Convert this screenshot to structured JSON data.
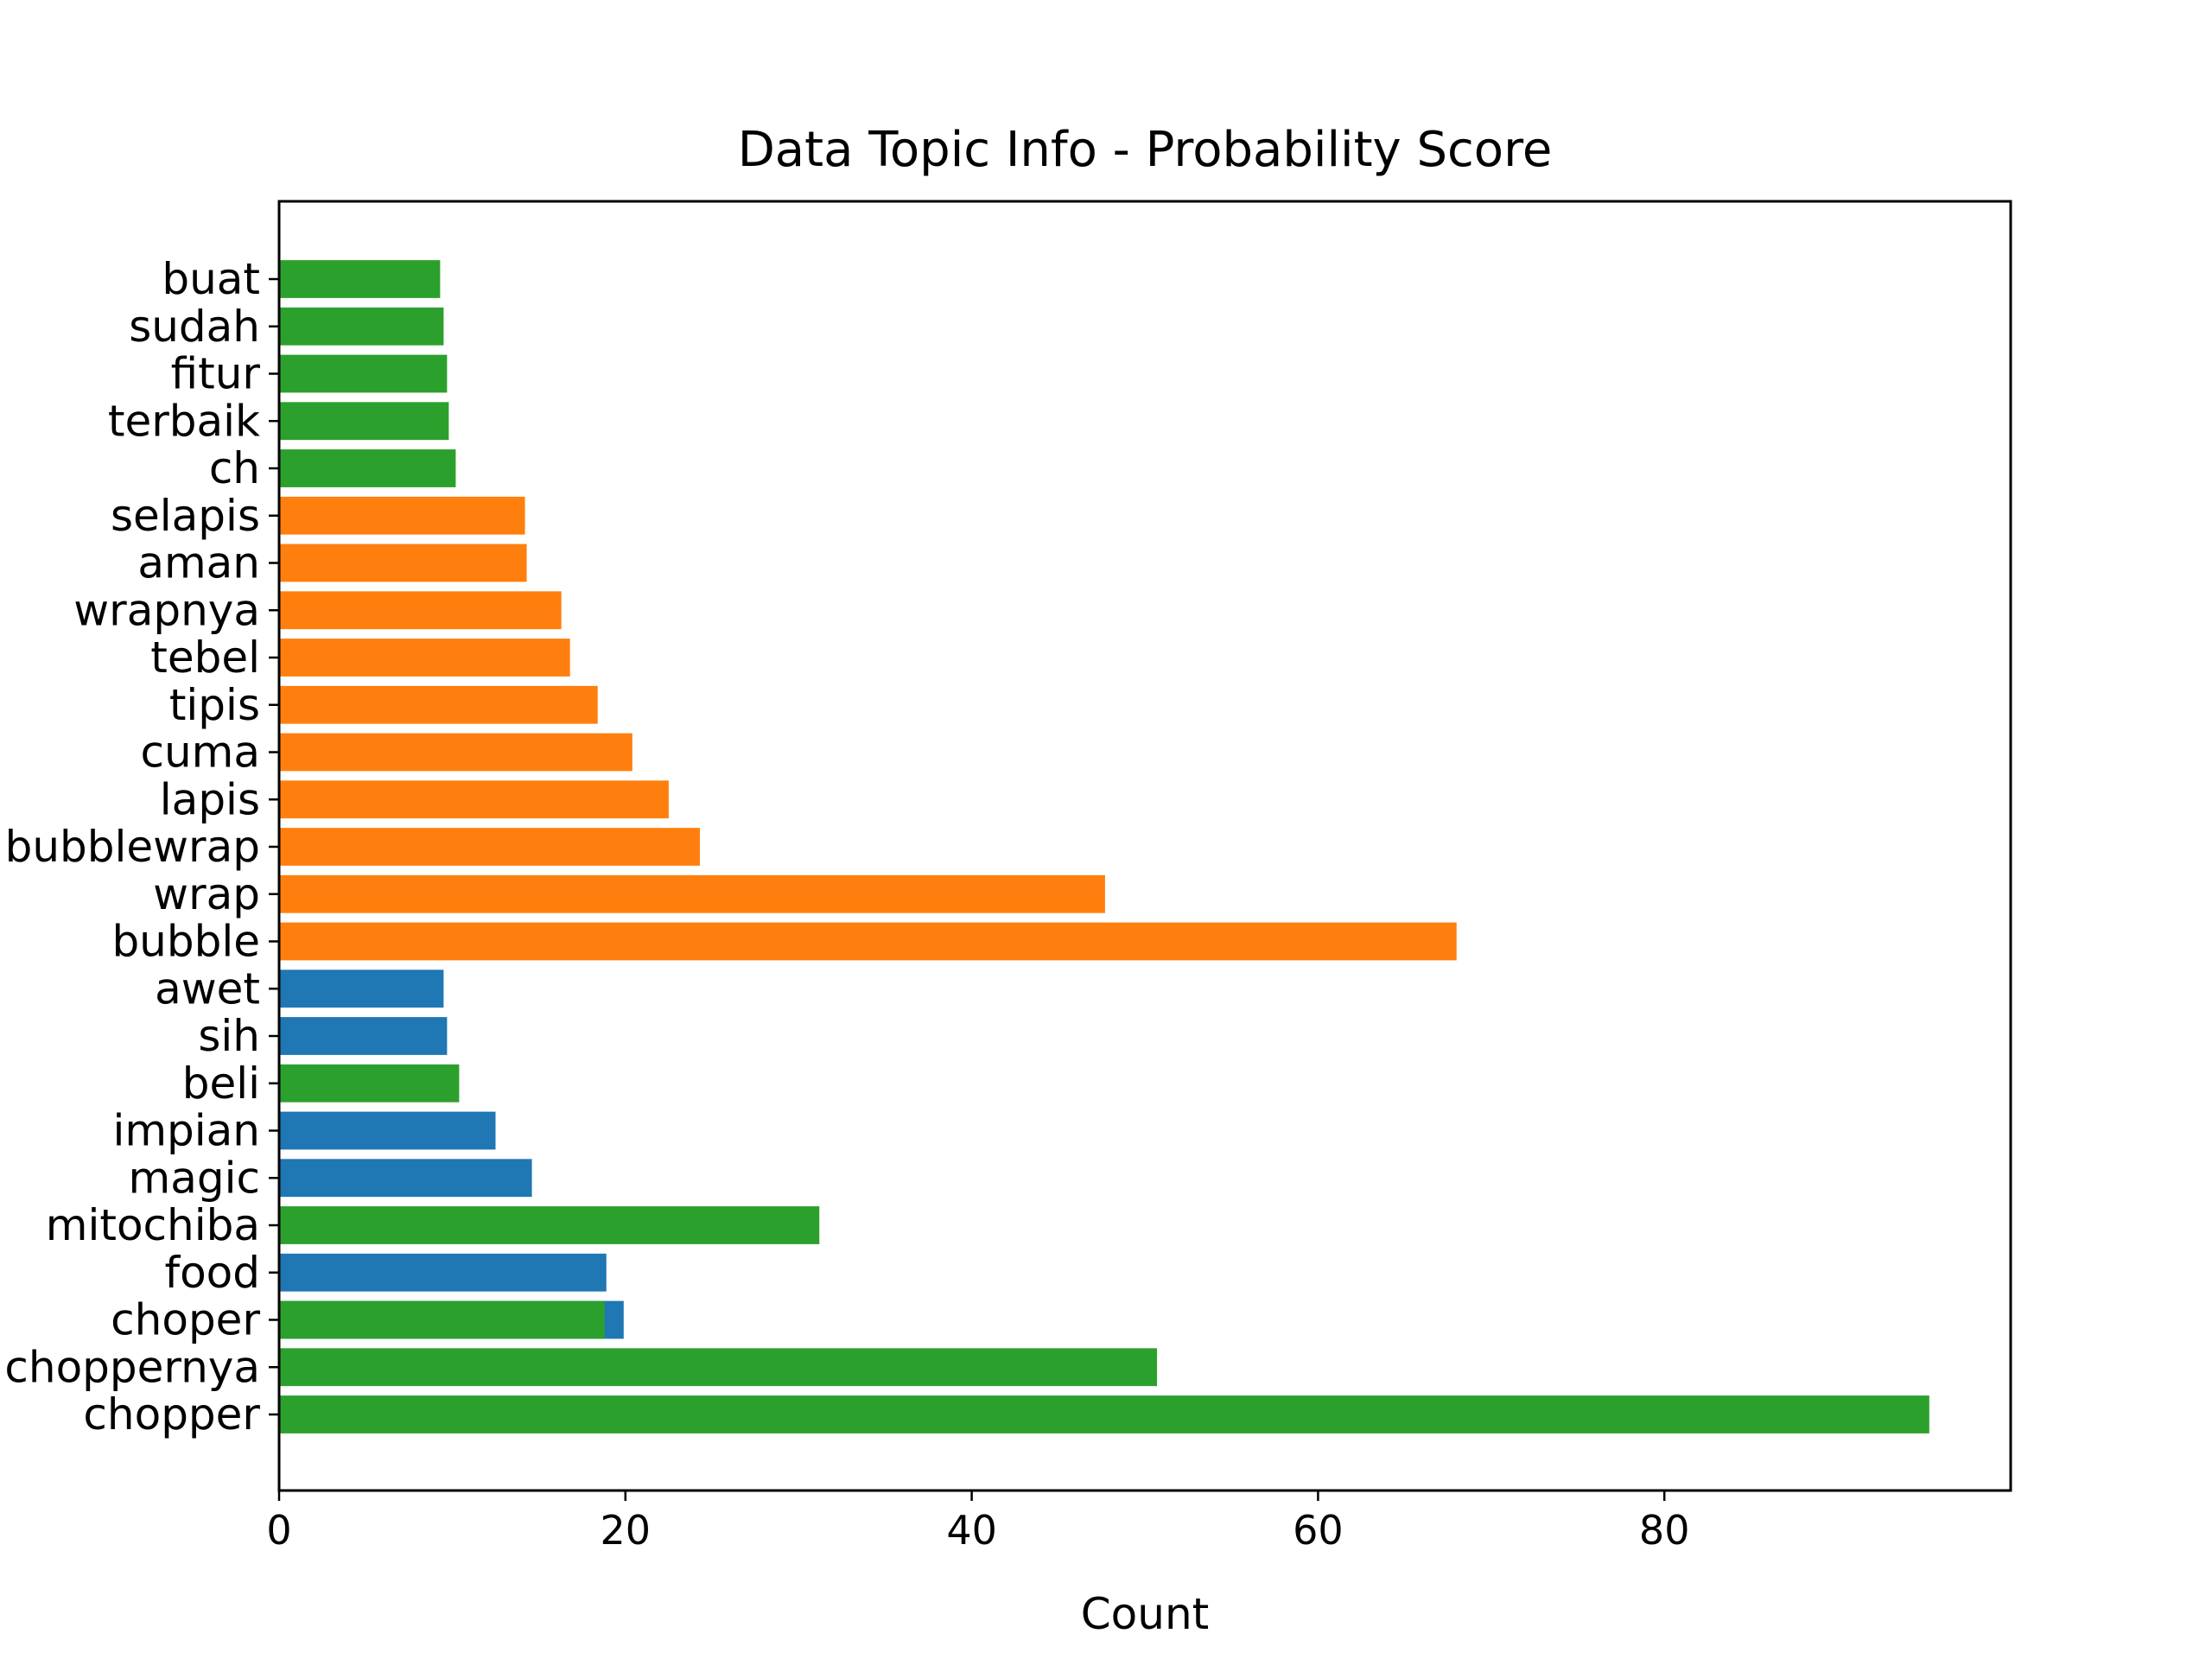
{
  "chart_data": {
    "type": "bar",
    "orientation": "horizontal",
    "title": "Data Topic Info - Probability Score",
    "xlabel": "Count",
    "ylabel": "",
    "xlim": [
      0,
      100
    ],
    "xticks": [
      0,
      20,
      40,
      60,
      80
    ],
    "grid": false,
    "colors": {
      "blue": "#1f77b4",
      "orange": "#ff7f0e",
      "green": "#2ca02c"
    },
    "bars": [
      {
        "label": "chopper",
        "value": 95.3,
        "color": "green"
      },
      {
        "label": "choppernya",
        "value": 50.7,
        "color": "green"
      },
      {
        "label": "choper",
        "value": 19.9,
        "color": "blue"
      },
      {
        "label": "choper",
        "value": 18.8,
        "color": "green"
      },
      {
        "label": "food",
        "value": 18.9,
        "color": "blue"
      },
      {
        "label": "mitochiba",
        "value": 31.2,
        "color": "green"
      },
      {
        "label": "magic",
        "value": 14.6,
        "color": "blue"
      },
      {
        "label": "impian",
        "value": 12.5,
        "color": "blue"
      },
      {
        "label": "beli",
        "value": 10.4,
        "color": "green"
      },
      {
        "label": "sih",
        "value": 9.7,
        "color": "blue"
      },
      {
        "label": "awet",
        "value": 9.5,
        "color": "blue"
      },
      {
        "label": "bubble",
        "value": 68.0,
        "color": "orange"
      },
      {
        "label": "wrap",
        "value": 47.7,
        "color": "orange"
      },
      {
        "label": "bubblewrap",
        "value": 24.3,
        "color": "orange"
      },
      {
        "label": "lapis",
        "value": 22.5,
        "color": "orange"
      },
      {
        "label": "cuma",
        "value": 20.4,
        "color": "orange"
      },
      {
        "label": "tipis",
        "value": 18.4,
        "color": "orange"
      },
      {
        "label": "tebel",
        "value": 16.8,
        "color": "orange"
      },
      {
        "label": "wrapnya",
        "value": 16.3,
        "color": "orange"
      },
      {
        "label": "aman",
        "value": 14.3,
        "color": "orange"
      },
      {
        "label": "selapis",
        "value": 14.2,
        "color": "orange"
      },
      {
        "label": "ch",
        "value": 10.2,
        "color": "green"
      },
      {
        "label": "terbaik",
        "value": 9.8,
        "color": "green"
      },
      {
        "label": "fitur",
        "value": 9.7,
        "color": "green"
      },
      {
        "label": "sudah",
        "value": 9.5,
        "color": "green"
      },
      {
        "label": "buat",
        "value": 9.3,
        "color": "green"
      }
    ]
  }
}
